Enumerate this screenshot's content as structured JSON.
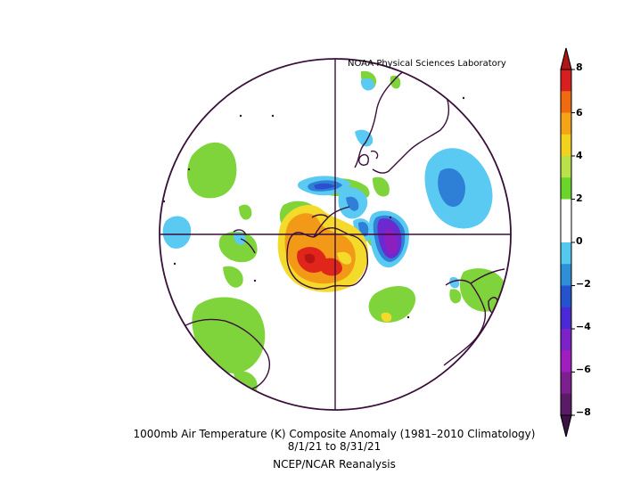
{
  "credit": "NOAA Physical Sciences Laboratory",
  "caption": {
    "line1": "1000mb Air Temperature (K) Composite Anomaly (1981–2010 Climatology)",
    "line2": "8/1/21  to 8/31/21",
    "line3": "NCEP/NCAR Reanalysis"
  },
  "colorbar": {
    "labels": [
      "8",
      "6",
      "4",
      "2",
      "0",
      "−2",
      "−4",
      "−6",
      "−8"
    ],
    "colors": [
      "#d81f1f",
      "#f06a10",
      "#f5a418",
      "#f2d21e",
      "#b8e14a",
      "#6ad62a",
      "#ffffff",
      "#ffffff",
      "#55c8f0",
      "#2c8fd8",
      "#2553cf",
      "#4b2ad6",
      "#7b22c8",
      "#a01ec0",
      "#7c1f8f",
      "#5a1a66"
    ],
    "min": -8,
    "max": 8
  },
  "map": {
    "projection": "polar stereographic (South Pole)",
    "palette": {
      "green": "#7ed43a",
      "light_blue": "#5bcaf3",
      "blue": "#2e7fd6",
      "dark_blue": "#2a4fcf",
      "purple": "#6a2ad0",
      "violet": "#8d1fbf",
      "yellow": "#f4da2a",
      "orange": "#f29a18",
      "red": "#e0261a",
      "coast": "#3a0f3a"
    }
  }
}
